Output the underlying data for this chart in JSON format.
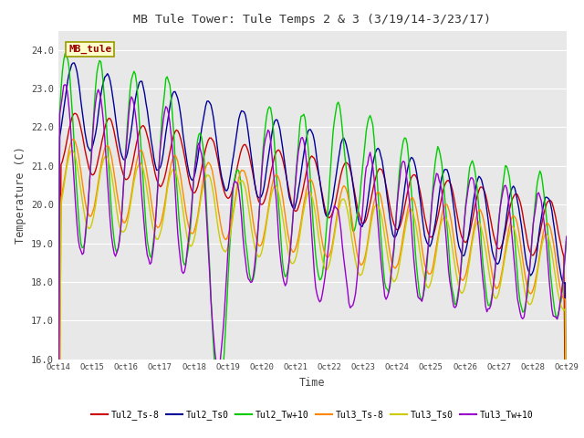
{
  "title": "MB Tule Tower: Tule Temps 2 & 3 (3/19/14-3/23/17)",
  "xlabel": "Time",
  "ylabel": "Temperature (C)",
  "ylim": [
    16.0,
    24.5
  ],
  "yticks": [
    16.0,
    17.0,
    18.0,
    19.0,
    20.0,
    21.0,
    22.0,
    23.0,
    24.0
  ],
  "series_colors": {
    "Tul2_Ts-8": "#cc0000",
    "Tul2_Ts0": "#000099",
    "Tul2_Tw+10": "#00cc00",
    "Tul3_Ts-8": "#ff8800",
    "Tul3_Ts0": "#cccc00",
    "Tul3_Tw+10": "#9900cc"
  },
  "legend_labels": [
    "Tul2_Ts-8",
    "Tul2_Ts0",
    "Tul2_Tw+10",
    "Tul3_Ts-8",
    "Tul3_Ts0",
    "Tul3_Tw+10"
  ],
  "xtick_labels": [
    "Oct 14",
    "Oct 15",
    "Oct 16",
    "Oct 17",
    "Oct 18",
    "Oct 19",
    "Oct 20",
    "Oct 21",
    "Oct 22",
    "Oct 23",
    "Oct 24",
    "Oct 25",
    "Oct 26",
    "Oct 27",
    "Oct 28",
    "Oct 29"
  ],
  "annotation_text": "MB_tule",
  "annotation_bg": "#ffffcc",
  "annotation_border": "#999900",
  "annotation_text_color": "#990000"
}
